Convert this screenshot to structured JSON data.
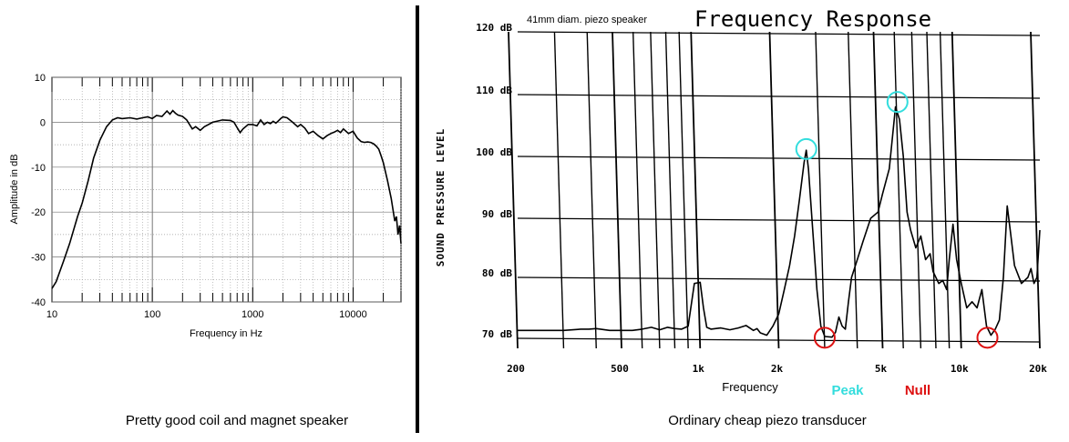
{
  "left_caption": "Pretty good coil and magnet speaker",
  "right_caption": "Ordinary cheap piezo transducer",
  "chart_data": [
    {
      "type": "line",
      "xlabel": "Frequency in Hz",
      "ylabel": "Amplitude in dB",
      "x_scale": "log",
      "xlim": [
        10,
        30000
      ],
      "ylim": [
        -40,
        10
      ],
      "x_ticks": [
        {
          "v": 10,
          "label": "10"
        },
        {
          "v": 100,
          "label": "100"
        },
        {
          "v": 1000,
          "label": "1000"
        },
        {
          "v": 10000,
          "label": "10000"
        }
      ],
      "y_ticks": [
        {
          "v": 10,
          "label": "10"
        },
        {
          "v": 0,
          "label": "0"
        },
        {
          "v": -10,
          "label": "-10"
        },
        {
          "v": -20,
          "label": "-20"
        },
        {
          "v": -30,
          "label": "-30"
        },
        {
          "v": -40,
          "label": "-40"
        }
      ],
      "grid": true,
      "line_color": "#000000",
      "points": [
        [
          10,
          -37
        ],
        [
          11,
          -35.5
        ],
        [
          13,
          -31
        ],
        [
          15,
          -27
        ],
        [
          18,
          -21
        ],
        [
          20,
          -18
        ],
        [
          23,
          -13
        ],
        [
          26,
          -8
        ],
        [
          30,
          -4
        ],
        [
          35,
          -1
        ],
        [
          40,
          0.5
        ],
        [
          45,
          1
        ],
        [
          50,
          0.8
        ],
        [
          60,
          1
        ],
        [
          70,
          0.7
        ],
        [
          80,
          1
        ],
        [
          90,
          1.2
        ],
        [
          100,
          0.8
        ],
        [
          110,
          1.5
        ],
        [
          125,
          1.3
        ],
        [
          140,
          2.5
        ],
        [
          150,
          1.8
        ],
        [
          160,
          2.6
        ],
        [
          170,
          2
        ],
        [
          180,
          1.6
        ],
        [
          200,
          1.3
        ],
        [
          220,
          0.5
        ],
        [
          250,
          -1.5
        ],
        [
          270,
          -1
        ],
        [
          300,
          -1.8
        ],
        [
          330,
          -1
        ],
        [
          400,
          0
        ],
        [
          500,
          0.5
        ],
        [
          600,
          0.4
        ],
        [
          650,
          0
        ],
        [
          700,
          -1.2
        ],
        [
          750,
          -2.3
        ],
        [
          800,
          -1.5
        ],
        [
          900,
          -0.5
        ],
        [
          1000,
          -0.5
        ],
        [
          1100,
          -0.8
        ],
        [
          1200,
          0.5
        ],
        [
          1300,
          -0.5
        ],
        [
          1400,
          0
        ],
        [
          1500,
          -0.3
        ],
        [
          1600,
          0.2
        ],
        [
          1700,
          -0.2
        ],
        [
          1800,
          0.3
        ],
        [
          1900,
          0.8
        ],
        [
          2000,
          1.2
        ],
        [
          2200,
          1
        ],
        [
          2500,
          0
        ],
        [
          2800,
          -1
        ],
        [
          3000,
          -0.5
        ],
        [
          3300,
          -1.3
        ],
        [
          3600,
          -2.5
        ],
        [
          4000,
          -2
        ],
        [
          4500,
          -3
        ],
        [
          5000,
          -3.7
        ],
        [
          5500,
          -3
        ],
        [
          6000,
          -2.5
        ],
        [
          6500,
          -2.2
        ],
        [
          7000,
          -1.8
        ],
        [
          7500,
          -2.3
        ],
        [
          8000,
          -1.5
        ],
        [
          9000,
          -2.5
        ],
        [
          10000,
          -2
        ],
        [
          11000,
          -3.5
        ],
        [
          12000,
          -4.3
        ],
        [
          13000,
          -4.5
        ],
        [
          14000,
          -4.4
        ],
        [
          15000,
          -4.5
        ],
        [
          16000,
          -4.8
        ],
        [
          17000,
          -5.3
        ],
        [
          18000,
          -6
        ],
        [
          19000,
          -7.5
        ],
        [
          20000,
          -9
        ],
        [
          22000,
          -13
        ],
        [
          24000,
          -17
        ],
        [
          26000,
          -22
        ],
        [
          27000,
          -21
        ],
        [
          28000,
          -25
        ],
        [
          29000,
          -23
        ],
        [
          30000,
          -27
        ]
      ]
    },
    {
      "type": "line",
      "title": "Frequency Response",
      "subtitle": "41mm diam. piezo speaker",
      "xlabel": "Frequency",
      "ylabel": "SOUND PRESSURE LEVEL",
      "x_scale": "log",
      "xlim": [
        200,
        20000
      ],
      "ylim": [
        70,
        120
      ],
      "x_ticks": [
        {
          "v": 200,
          "label": "200"
        },
        {
          "v": 500,
          "label": "500"
        },
        {
          "v": 1000,
          "label": "1k"
        },
        {
          "v": 2000,
          "label": "2k"
        },
        {
          "v": 5000,
          "label": "5k"
        },
        {
          "v": 10000,
          "label": "10k"
        },
        {
          "v": 20000,
          "label": "20k"
        }
      ],
      "y_ticks": [
        {
          "v": 120,
          "label": "120 dB"
        },
        {
          "v": 110,
          "label": "110 dB"
        },
        {
          "v": 100,
          "label": "100 dB"
        },
        {
          "v": 90,
          "label": "90 dB"
        },
        {
          "v": 80,
          "label": "80 dB"
        },
        {
          "v": 70,
          "label": "70 dB"
        }
      ],
      "grid": true,
      "line_color": "#000000",
      "legend": [
        {
          "label": "Peak",
          "color": "#33dddd"
        },
        {
          "label": "Null",
          "color": "#dd1111"
        }
      ],
      "annotations": [
        {
          "kind": "peak",
          "x": 2550,
          "y": 101.2,
          "color": "#33dddd"
        },
        {
          "kind": "peak",
          "x": 5700,
          "y": 108.8,
          "color": "#33dddd"
        },
        {
          "kind": "null",
          "x": 3000,
          "y": 70.1,
          "color": "#dd1111"
        },
        {
          "kind": "null",
          "x": 12600,
          "y": 70.1,
          "color": "#dd1111"
        }
      ],
      "points": [
        [
          200,
          71.3
        ],
        [
          250,
          71.3
        ],
        [
          300,
          71.3
        ],
        [
          350,
          71.5
        ],
        [
          375,
          71.5
        ],
        [
          400,
          71.6
        ],
        [
          450,
          71.3
        ],
        [
          500,
          71.3
        ],
        [
          550,
          71.3
        ],
        [
          600,
          71.5
        ],
        [
          650,
          71.8
        ],
        [
          700,
          71.4
        ],
        [
          750,
          71.8
        ],
        [
          800,
          71.6
        ],
        [
          850,
          71.5
        ],
        [
          900,
          72
        ],
        [
          950,
          79
        ],
        [
          1000,
          79.2
        ],
        [
          1030,
          75
        ],
        [
          1060,
          71.8
        ],
        [
          1100,
          71.5
        ],
        [
          1200,
          71.7
        ],
        [
          1300,
          71.4
        ],
        [
          1400,
          71.7
        ],
        [
          1500,
          72.1
        ],
        [
          1600,
          71.3
        ],
        [
          1650,
          71.6
        ],
        [
          1700,
          70.9
        ],
        [
          1800,
          70.5
        ],
        [
          1900,
          72
        ],
        [
          2000,
          74
        ],
        [
          2100,
          78
        ],
        [
          2200,
          82
        ],
        [
          2300,
          87
        ],
        [
          2400,
          93
        ],
        [
          2500,
          99
        ],
        [
          2550,
          101
        ],
        [
          2600,
          98
        ],
        [
          2700,
          88
        ],
        [
          2800,
          78
        ],
        [
          2900,
          72
        ],
        [
          3000,
          70.3
        ],
        [
          3200,
          70.2
        ],
        [
          3300,
          71
        ],
        [
          3400,
          73.5
        ],
        [
          3500,
          72
        ],
        [
          3600,
          71.5
        ],
        [
          3700,
          76
        ],
        [
          3800,
          80
        ],
        [
          4000,
          83
        ],
        [
          4200,
          86
        ],
        [
          4500,
          90
        ],
        [
          4800,
          91
        ],
        [
          5000,
          94
        ],
        [
          5300,
          98
        ],
        [
          5600,
          108
        ],
        [
          5800,
          106
        ],
        [
          6000,
          100
        ],
        [
          6200,
          91
        ],
        [
          6400,
          88
        ],
        [
          6700,
          85
        ],
        [
          7000,
          87
        ],
        [
          7300,
          83
        ],
        [
          7600,
          84
        ],
        [
          7800,
          81
        ],
        [
          8200,
          79
        ],
        [
          8500,
          79.5
        ],
        [
          8800,
          78
        ],
        [
          9000,
          83
        ],
        [
          9300,
          89
        ],
        [
          9600,
          83
        ],
        [
          10000,
          79
        ],
        [
          10500,
          75
        ],
        [
          11000,
          76
        ],
        [
          11500,
          75
        ],
        [
          12000,
          78
        ],
        [
          12500,
          72
        ],
        [
          13000,
          70.5
        ],
        [
          13500,
          71.5
        ],
        [
          14000,
          73
        ],
        [
          14500,
          80
        ],
        [
          15000,
          92
        ],
        [
          15400,
          88
        ],
        [
          16000,
          82
        ],
        [
          17000,
          79
        ],
        [
          18000,
          80
        ],
        [
          18500,
          81.5
        ],
        [
          19000,
          79
        ],
        [
          19500,
          80
        ],
        [
          20000,
          88
        ]
      ]
    }
  ]
}
